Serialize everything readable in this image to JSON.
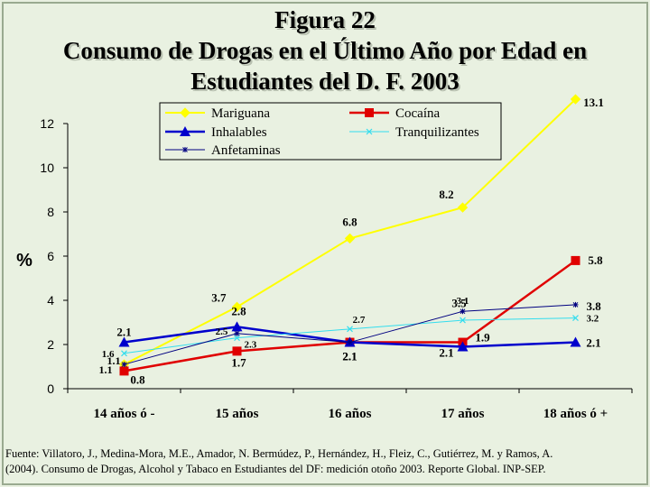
{
  "figure": {
    "number_title": "Figura 22",
    "title_line1": "Consumo de Drogas en el Último Año por Edad en",
    "title_line2": "Estudiantes del D. F. 2003"
  },
  "source": {
    "line1": "Fuente: Villatoro, J., Medina-Mora, M.E., Amador, N. Bermúdez, P., Hernández, H., Fleiz, C., Gutiérrez, M. y Ramos, A.",
    "line2": "(2004). Consumo de Drogas, Alcohol y Tabaco en Estudiantes del DF: medición otoño 2003. Reporte Global. INP-SEP."
  },
  "chart_data": {
    "type": "line",
    "title": "Consumo de Drogas en el Último Año por Edad en Estudiantes del D. F. 2003",
    "ylabel": "%",
    "xlabel": "",
    "categories": [
      "14 años ó -",
      "15 años",
      "16 años",
      "17 años",
      "18 años ó +"
    ],
    "ylim": [
      0,
      12
    ],
    "yticks": [
      0,
      2,
      4,
      6,
      8,
      10,
      12
    ],
    "grid": false,
    "legend_position": "top",
    "series": [
      {
        "name": "Mariguana",
        "values": [
          1.1,
          3.7,
          6.8,
          8.2,
          13.1
        ],
        "labels": [
          "1.1",
          "3.7",
          "6.8",
          "8.2",
          "13.1"
        ],
        "color": "#ffff00",
        "marker": "diamond"
      },
      {
        "name": "Cocaína",
        "values": [
          0.8,
          1.7,
          2.1,
          2.1,
          5.8
        ],
        "labels": [
          "0.8",
          "1.7",
          "2.1",
          "2.1",
          "5.8"
        ],
        "color": "#e00000",
        "marker": "square"
      },
      {
        "name": "Inhalables",
        "values": [
          2.1,
          2.8,
          2.1,
          1.9,
          2.1
        ],
        "labels": [
          "2.1",
          "2.8",
          "2.1",
          "1.9",
          "2.1"
        ],
        "color": "#0000cc",
        "marker": "triangle"
      },
      {
        "name": "Tranquilizantes",
        "values": [
          1.6,
          2.3,
          2.7,
          3.1,
          3.2
        ],
        "labels": [
          "1.6",
          "2.3",
          "2.7",
          "3.1",
          "3.2"
        ],
        "color": "#33ddee",
        "marker": "x"
      },
      {
        "name": "Anfetaminas",
        "values": [
          1.1,
          2.5,
          2.1,
          3.5,
          3.8
        ],
        "labels": [
          "1.1",
          "2.5",
          "2.1",
          "3.5",
          "3.8"
        ],
        "color": "#000080",
        "marker": "star"
      }
    ]
  }
}
